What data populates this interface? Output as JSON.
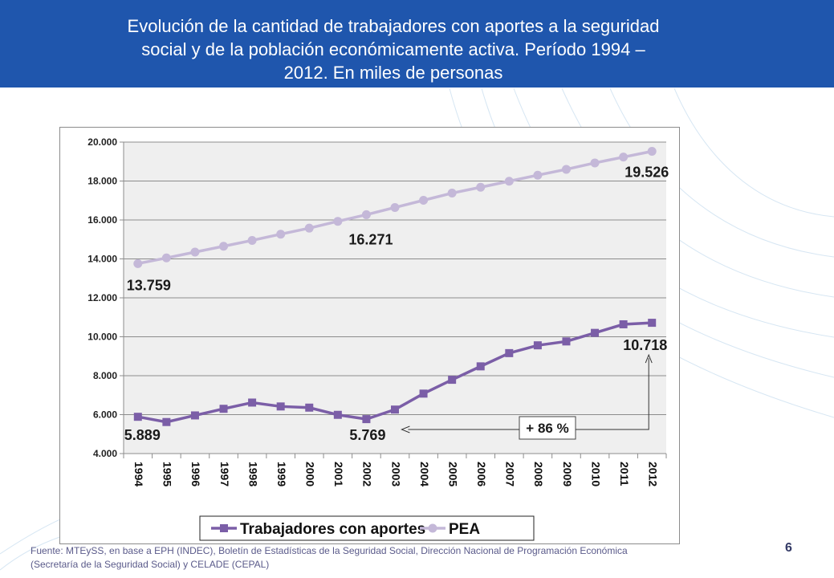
{
  "slide": {
    "title_line1": "Evolución de la cantidad de trabajadores con aportes a la seguridad",
    "title_line2": "social y de la población económicamente activa. Período 1994 –",
    "title_line3": "2012. En miles de personas",
    "source_line1": "Fuente: MTEySS, en base a EPH (INDEC), Boletín de Estadísticas de la Seguridad Social, Dirección Nacional de Programación Económica",
    "source_line2": "(Secretaría de la Seguridad Social) y CELADE (CEPAL)",
    "page_number": "6",
    "header_color": "#1f56ad"
  },
  "chart_data": {
    "type": "line",
    "categories": [
      "1994",
      "1995",
      "1996",
      "1997",
      "1998",
      "1999",
      "2000",
      "2001",
      "2002",
      "2003",
      "2004",
      "2005",
      "2006",
      "2007",
      "2008",
      "2009",
      "2010",
      "2011",
      "2012"
    ],
    "ylim": [
      4000,
      20000
    ],
    "yticks": [
      4000,
      6000,
      8000,
      10000,
      12000,
      14000,
      16000,
      18000,
      20000
    ],
    "ytick_labels": [
      "4.000",
      "6.000",
      "8.000",
      "10.000",
      "12.000",
      "14.000",
      "16.000",
      "18.000",
      "20.000"
    ],
    "grid": true,
    "legend_position": "bottom",
    "plot_background": "#efefef",
    "series": [
      {
        "name": "Trabajadores con aportes",
        "marker": "square",
        "color": "#7b5ea7",
        "values": [
          5889,
          5620,
          5960,
          6300,
          6620,
          6420,
          6360,
          5990,
          5769,
          6260,
          7080,
          7790,
          8480,
          9160,
          9560,
          9760,
          10200,
          10640,
          10718
        ]
      },
      {
        "name": "PEA",
        "marker": "circle",
        "color": "#c4b8d8",
        "values": [
          13759,
          14050,
          14350,
          14650,
          14950,
          15270,
          15580,
          15930,
          16271,
          16640,
          17010,
          17380,
          17680,
          17990,
          18300,
          18600,
          18930,
          19230,
          19526
        ]
      }
    ],
    "annotations": [
      {
        "text": "13.759",
        "category": "1994",
        "value": 13759
      },
      {
        "text": "16.271",
        "category": "2002",
        "value": 16271
      },
      {
        "text": "19.526",
        "category": "2012",
        "value": 19526
      },
      {
        "text": "5.889",
        "category": "1994",
        "value": 5889
      },
      {
        "text": "5.769",
        "category": "2002",
        "value": 5769
      },
      {
        "text": "10.718",
        "category": "2012",
        "value": 10718
      },
      {
        "text": "+ 86 %"
      }
    ]
  }
}
